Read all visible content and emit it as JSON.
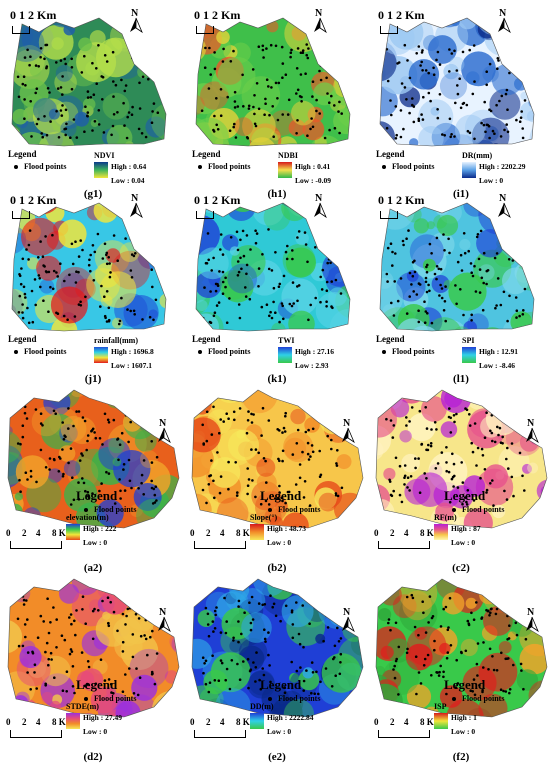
{
  "scale_top": "0 1 2 Km",
  "scale_bottom": {
    "ticks": [
      "0",
      "2",
      "4",
      "8 Km"
    ]
  },
  "north_label": "N",
  "legend_label": "Legend",
  "flood_points_label": "Flood points",
  "panels": [
    {
      "id": "g1",
      "caption": "(g1)",
      "name": "NDVI",
      "high": "High : 0.64",
      "low": "Low : 0.04",
      "ramp": [
        "#0b3a8c",
        "#3fb55a",
        "#f2e63a"
      ]
    },
    {
      "id": "h1",
      "caption": "(h1)",
      "name": "NDBI",
      "high": "High : 0.41",
      "low": "Low : -0.09",
      "ramp": [
        "#d7191c",
        "#f4e04d",
        "#2fb84a"
      ]
    },
    {
      "id": "i1",
      "caption": "(i1)",
      "name": "DR(mm)",
      "high": "High : 2202.29",
      "low": "Low : 0",
      "ramp": [
        "#e6f2ff",
        "#5aa0e6",
        "#0a2a8a"
      ]
    },
    {
      "id": "j1",
      "caption": "(j1)",
      "name": "rainfall(mm)",
      "high": "High : 1696.8",
      "low": "Low : 1607.1",
      "ramp": [
        "#1f4fd6",
        "#2fd1e6",
        "#f2e63a",
        "#e31a1c"
      ]
    },
    {
      "id": "k1",
      "caption": "(k1)",
      "name": "TWI",
      "high": "High : 27.16",
      "low": "Low : 2.93",
      "ramp": [
        "#1f3fd6",
        "#2fd1e6",
        "#39c94a"
      ]
    },
    {
      "id": "l1",
      "caption": "(l1)",
      "name": "SPI",
      "high": "High : 12.91",
      "low": "Low : -8.46",
      "ramp": [
        "#1f3fd6",
        "#2fd1e6",
        "#39c94a"
      ]
    },
    {
      "id": "a2",
      "caption": "(a2)",
      "name": "elevation(m)",
      "high": "High : 222",
      "low": "Low : 0",
      "ramp": [
        "#1f3fd6",
        "#39c94a",
        "#f2e63a",
        "#e64a19"
      ]
    },
    {
      "id": "b2",
      "caption": "(b2)",
      "name": "Slope(°)",
      "high": "High : 48.73",
      "low": "Low : 0",
      "ramp": [
        "#d7191c",
        "#f28c28",
        "#f7e85a"
      ]
    },
    {
      "id": "c2",
      "caption": "(c2)",
      "name": "RF(m)",
      "high": "High : 87",
      "low": "Low : 0",
      "ramp": [
        "#b61fd6",
        "#e6508c",
        "#f7c64a",
        "#fff8b0"
      ]
    },
    {
      "id": "d2",
      "caption": "(d2)",
      "name": "STDE(m)",
      "high": "High : 27.49",
      "low": "Low : 0",
      "ramp": [
        "#9b2fe0",
        "#e64a7a",
        "#f28c28",
        "#f7e85a"
      ]
    },
    {
      "id": "e2",
      "caption": "(e2)",
      "name": "DD(m)",
      "high": "High : 2222.84",
      "low": "Low : 0",
      "ramp": [
        "#1f3fd6",
        "#2fd1e6",
        "#39c94a"
      ]
    },
    {
      "id": "f2",
      "caption": "(f2)",
      "name": "ISP",
      "high": "High : 1",
      "low": "Low : 0",
      "ramp": [
        "#d7191c",
        "#f2e63a",
        "#39c94a"
      ]
    }
  ],
  "colors": {
    "points": "#000000"
  }
}
